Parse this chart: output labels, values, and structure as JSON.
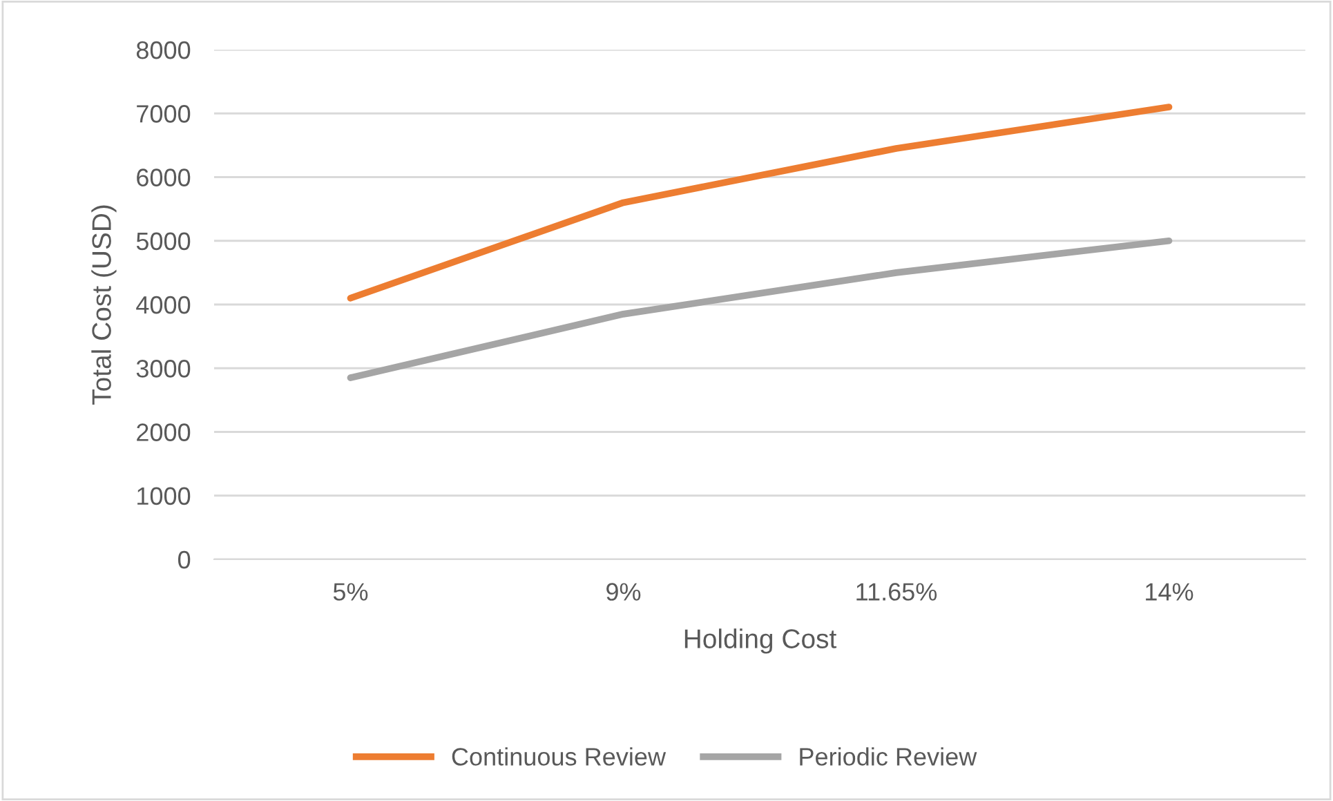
{
  "chart_data": {
    "type": "line",
    "xlabel": "Holding Cost",
    "ylabel": "Total Cost (USD)",
    "categories": [
      "5%",
      "9%",
      "11.65%",
      "14%"
    ],
    "series": [
      {
        "name": "Continuous Review",
        "color": "#ed7d31",
        "values": [
          4100,
          5600,
          6450,
          7100
        ]
      },
      {
        "name": "Periodic Review",
        "color": "#a5a5a5",
        "values": [
          2850,
          3850,
          4500,
          5000
        ]
      }
    ],
    "ylim": [
      0,
      8000
    ],
    "yticks": [
      0,
      1000,
      2000,
      3000,
      4000,
      5000,
      6000,
      7000,
      8000
    ],
    "grid": "y",
    "legend": "bottom",
    "marker": "none",
    "line_style": "solid"
  }
}
